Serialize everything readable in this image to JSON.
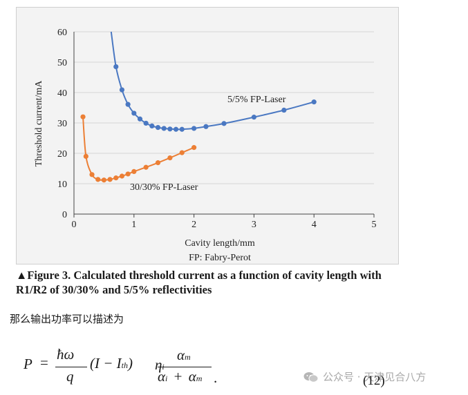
{
  "figure": {
    "caption": "▲Figure 3. Calculated threshold current as a function of cavity length with R1/R2 of 30/30% and 5/5% reflectivities",
    "abbreviation_note": "FP: Fabry-Perot"
  },
  "chart_data": {
    "type": "line",
    "xlabel": "Cavity length/mm",
    "ylabel": "Threshold current/mA",
    "xlim": [
      0,
      5
    ],
    "ylim": [
      0,
      60
    ],
    "xticks": [
      "0",
      "1",
      "2",
      "3",
      "4",
      "5"
    ],
    "yticks": [
      "0",
      "10",
      "20",
      "30",
      "40",
      "50",
      "60"
    ],
    "grid": "horizontal",
    "series": [
      {
        "name": "5/5% FP-Laser",
        "color": "#4a78c2",
        "x": [
          0.7,
          0.8,
          0.9,
          1.0,
          1.1,
          1.2,
          1.3,
          1.4,
          1.5,
          1.6,
          1.7,
          1.8,
          2.0,
          2.2,
          2.5,
          3.0,
          3.5,
          4.0
        ],
        "y": [
          48.5,
          40.9,
          36.1,
          33.2,
          31.3,
          29.9,
          29.0,
          28.5,
          28.2,
          28.0,
          27.9,
          27.9,
          28.2,
          28.8,
          29.8,
          31.9,
          34.2,
          36.9
        ],
        "curve_start": [
          0.62,
          60
        ]
      },
      {
        "name": "30/30% FP-Laser",
        "color": "#ec7f35",
        "x": [
          0.15,
          0.2,
          0.3,
          0.4,
          0.5,
          0.6,
          0.7,
          0.8,
          0.9,
          1.0,
          1.2,
          1.4,
          1.6,
          1.8,
          2.0
        ],
        "y": [
          32.0,
          19.0,
          13.0,
          11.4,
          11.2,
          11.4,
          11.9,
          12.5,
          13.2,
          14.0,
          15.4,
          16.9,
          18.5,
          20.2,
          21.9
        ]
      }
    ]
  },
  "text": {
    "chinese_line": "那么输出功率可以描述为",
    "equation_number": "(12)",
    "watermark": "公众号 · 天津见合八方"
  },
  "equation": {
    "lhs": "P",
    "eq": "=",
    "num1": "ħω",
    "den1": "q",
    "paren": "(I − I",
    "paren_sub": "th",
    "paren_close": ")",
    "eta": "η",
    "eta_sub": "i",
    "num2": "α",
    "num2_sub": "m",
    "den2a": "α",
    "den2a_sub": "i",
    "plus": "+",
    "den2b": "α",
    "den2b_sub": "m",
    "period": "."
  }
}
